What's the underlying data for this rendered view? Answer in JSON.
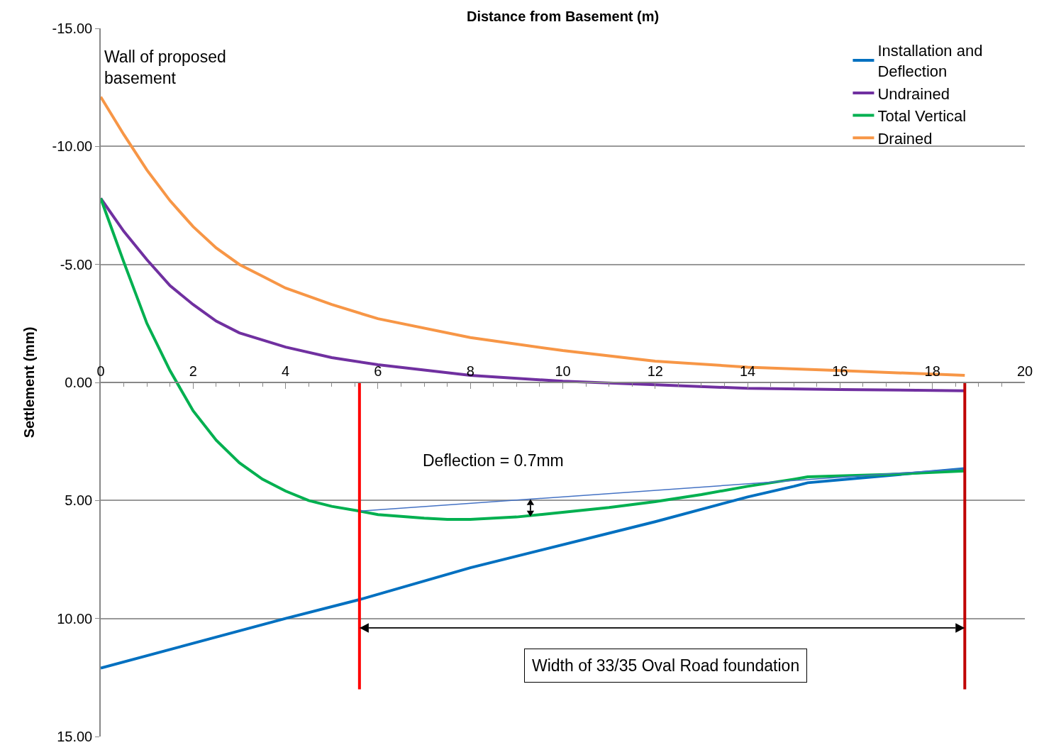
{
  "chart_data": {
    "type": "line",
    "xlabel": "Distance from Basement (m)",
    "ylabel": "Settlement (mm)",
    "xlim": [
      0,
      20
    ],
    "xticks": [
      0,
      2,
      4,
      6,
      8,
      10,
      12,
      14,
      16,
      18,
      20
    ],
    "ylim": [
      15,
      -15
    ],
    "yticks": [
      {
        "value": -15,
        "label": "-15.00"
      },
      {
        "value": -10,
        "label": "-10.00"
      },
      {
        "value": -5,
        "label": "-5.00"
      },
      {
        "value": 0,
        "label": "0.00"
      },
      {
        "value": 5,
        "label": "5.00"
      },
      {
        "value": 10,
        "label": "10.00"
      },
      {
        "value": 15,
        "label": "15.00"
      }
    ],
    "grid": "y",
    "legend": "top right",
    "marker": "none",
    "line_style": "solid",
    "series": [
      {
        "name": "Installation and Deflection",
        "color": "#0070c0",
        "x": [
          0,
          4,
          5.6,
          8,
          12,
          14,
          15,
          15.3,
          18.7
        ],
        "values": [
          12.1,
          10,
          9.2,
          7.85,
          5.9,
          4.85,
          4.4,
          4.25,
          3.65
        ]
      },
      {
        "name": "Undrained",
        "color": "#7030a0",
        "x": [
          0,
          0.5,
          1,
          1.5,
          2,
          2.5,
          3,
          3.5,
          4,
          5,
          6,
          8,
          10,
          12,
          14,
          16,
          18.7
        ],
        "values": [
          -7.8,
          -6.4,
          -5.2,
          -4.1,
          -3.3,
          -2.6,
          -2.1,
          -1.8,
          -1.5,
          -1.05,
          -0.75,
          -0.3,
          -0.05,
          0.1,
          0.25,
          0.3,
          0.35
        ]
      },
      {
        "name": "Total Vertical",
        "color": "#00b050",
        "x": [
          0,
          0.5,
          1,
          1.5,
          2,
          2.5,
          3,
          3.5,
          4,
          4.5,
          5,
          5.6,
          6,
          7,
          7.5,
          8,
          9,
          10,
          11,
          12,
          13,
          14,
          15,
          15.3,
          17,
          18.7
        ],
        "values": [
          -7.8,
          -5.1,
          -2.5,
          -0.5,
          1.2,
          2.45,
          3.4,
          4.1,
          4.6,
          5,
          5.25,
          5.45,
          5.6,
          5.75,
          5.8,
          5.8,
          5.7,
          5.5,
          5.3,
          5.05,
          4.75,
          4.4,
          4.1,
          4,
          3.9,
          3.75
        ]
      },
      {
        "name": "Drained",
        "color": "#f79646",
        "x": [
          0,
          0.5,
          1,
          1.5,
          2,
          2.5,
          3,
          3.5,
          4,
          5,
          6,
          8,
          10,
          12,
          14,
          16,
          18.7
        ],
        "values": [
          -12.1,
          -10.5,
          -9,
          -7.7,
          -6.6,
          -5.7,
          -5,
          -4.5,
          -4,
          -3.3,
          -2.7,
          -1.9,
          -1.35,
          -0.9,
          -0.65,
          -0.5,
          -0.3
        ]
      },
      {
        "color": "#4472c4",
        "x": [
          5.6,
          18.7
        ],
        "values": [
          5.45,
          3.65
        ]
      },
      {
        "color": "#ff0000",
        "x": [
          5.6,
          5.6
        ],
        "values": [
          0,
          13
        ]
      },
      {
        "color": "#c00000",
        "x": [
          18.7,
          18.7
        ],
        "values": [
          0,
          13
        ]
      }
    ],
    "annotations": [
      "Wall of proposed basement",
      "Deflection = 0.7mm",
      "Width of 33/35 Oval Road foundation"
    ]
  }
}
